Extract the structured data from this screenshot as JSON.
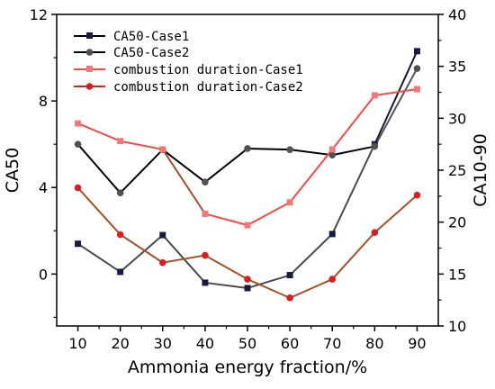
{
  "chart_data": {
    "type": "line",
    "xlabel": "Ammonia energy fraction/%",
    "ylabel": "CA50",
    "y2label": "CA10-90",
    "x": [
      10,
      20,
      30,
      40,
      50,
      60,
      70,
      80,
      90
    ],
    "x_tick_labels": [
      "10",
      "20",
      "30",
      "40",
      "50",
      "60",
      "70",
      "80",
      "90"
    ],
    "xlim": [
      5,
      95
    ],
    "ylim": [
      -2.4,
      12
    ],
    "y_ticks": [
      0,
      4,
      8,
      12
    ],
    "y_tick_labels": [
      "0",
      "4",
      "8",
      "12"
    ],
    "y2lim": [
      10,
      40
    ],
    "y2_ticks": [
      10,
      15,
      20,
      25,
      30,
      35,
      40
    ],
    "y2_tick_labels": [
      "10",
      "15",
      "20",
      "25",
      "30",
      "35",
      "40"
    ],
    "legend_position": "top-left",
    "grid": false,
    "series": [
      {
        "name": "CA50-Case1",
        "axis": "left",
        "marker": "square",
        "marker_color": "#1b1b40",
        "values": [
          1.4,
          0.1,
          1.8,
          -0.4,
          -0.65,
          -0.05,
          1.85,
          6.0,
          10.3
        ],
        "segment_colors": [
          "#4a4a4a",
          "#4a4a4a",
          "#4a4a4a",
          "#4a4a4a",
          "#4a4a4a",
          "#4a4a4a",
          "#4a4a4a",
          "#1a1a2e"
        ]
      },
      {
        "name": "CA50-Case2",
        "axis": "left",
        "marker": "circle",
        "marker_color": "#505050",
        "values": [
          6.0,
          3.75,
          5.75,
          4.25,
          5.8,
          5.75,
          5.5,
          5.9,
          9.5
        ],
        "segment_colors": [
          "#000000",
          "#000000",
          "#000000",
          "#000000",
          "#000000",
          "#000000",
          "#000000",
          "#555555"
        ]
      },
      {
        "name": "combustion duration-Case1",
        "axis": "right",
        "marker": "square",
        "marker_color": "#f07a7a",
        "values": [
          29.5,
          27.8,
          27.0,
          20.8,
          19.7,
          21.9,
          27.0,
          32.2,
          32.8
        ],
        "segment_colors": [
          "#f04a4a",
          "#f04a4a",
          "#a0522d",
          "#f04a4a",
          "#f04a4a",
          "#f04a4a",
          "#f04a4a",
          "#f04a4a"
        ]
      },
      {
        "name": "combustion duration-Case2",
        "axis": "right",
        "marker": "circle",
        "marker_color": "#d42020",
        "values": [
          23.3,
          18.8,
          16.1,
          16.8,
          14.5,
          12.7,
          14.5,
          19.0,
          22.6
        ],
        "segment_colors": [
          "#a0522d",
          "#a0522d",
          "#a0522d",
          "#a0522d",
          "#a0522d",
          "#a0522d",
          "#a0522d",
          "#a0522d"
        ]
      }
    ],
    "legend_line_colors": [
      "#000000",
      "#000000",
      "#f04a4a",
      "#e02020"
    ]
  }
}
